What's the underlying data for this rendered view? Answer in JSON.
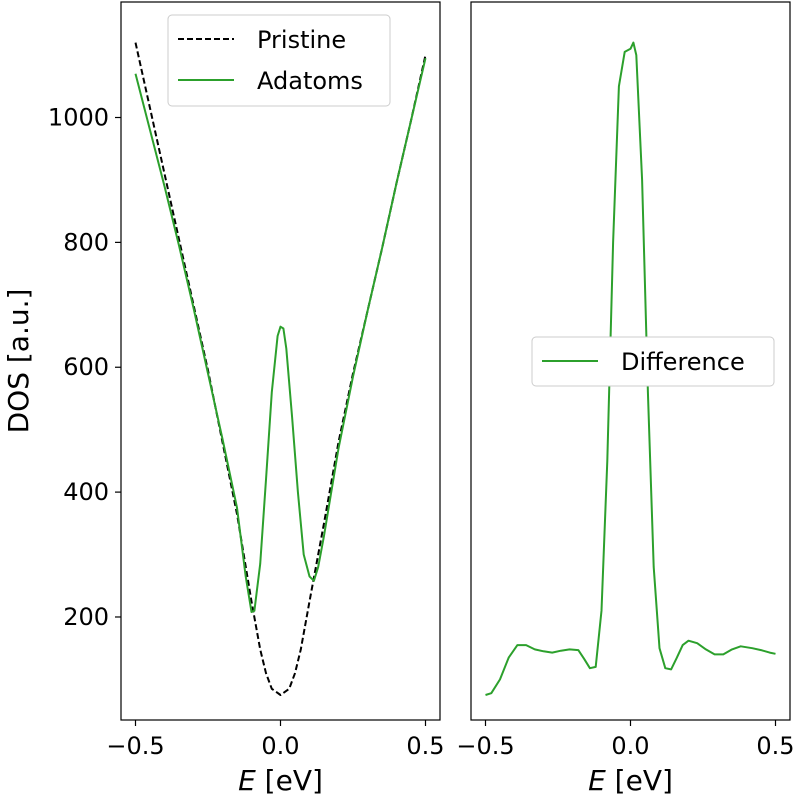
{
  "chart_data": [
    {
      "type": "line",
      "xlabel_var": "E",
      "xlabel_unit": " [eV]",
      "ylabel": "DOS [a.u.]",
      "xlim": [
        -0.55,
        0.55
      ],
      "ylim": [
        35,
        1185
      ],
      "xticks": [
        -0.5,
        0.0,
        0.5
      ],
      "xtick_labels": [
        "−0.5",
        "0.0",
        "0.5"
      ],
      "yticks": [
        200,
        400,
        600,
        800,
        1000
      ],
      "ytick_labels": [
        "200",
        "400",
        "600",
        "800",
        "1000"
      ],
      "legend_position": "top-center",
      "grid": false,
      "series": [
        {
          "name": "Pristine",
          "color": "#000000",
          "style": "dashed",
          "x": [
            -0.5,
            -0.45,
            -0.4,
            -0.35,
            -0.3,
            -0.25,
            -0.2,
            -0.15,
            -0.1,
            -0.07,
            -0.05,
            -0.03,
            0.0,
            0.03,
            0.05,
            0.07,
            0.1,
            0.15,
            0.2,
            0.25,
            0.3,
            0.35,
            0.4,
            0.45,
            0.5
          ],
          "y": [
            1120,
            1015,
            910,
            805,
            700,
            595,
            480,
            365,
            225,
            148,
            110,
            85,
            75,
            85,
            110,
            148,
            225,
            350,
            480,
            590,
            690,
            790,
            895,
            995,
            1100
          ]
        },
        {
          "name": "Adatoms",
          "color": "#2ca02c",
          "style": "solid",
          "x": [
            -0.5,
            -0.45,
            -0.4,
            -0.35,
            -0.3,
            -0.25,
            -0.2,
            -0.15,
            -0.12,
            -0.1,
            -0.09,
            -0.07,
            -0.05,
            -0.03,
            -0.01,
            0.0,
            0.01,
            0.02,
            0.04,
            0.06,
            0.08,
            0.1,
            0.115,
            0.13,
            0.15,
            0.2,
            0.25,
            0.3,
            0.35,
            0.4,
            0.45,
            0.5
          ],
          "y": [
            1070,
            980,
            890,
            795,
            695,
            590,
            485,
            375,
            265,
            208,
            210,
            285,
            420,
            560,
            650,
            665,
            662,
            630,
            520,
            400,
            300,
            265,
            258,
            280,
            330,
            470,
            585,
            690,
            790,
            895,
            995,
            1095
          ]
        }
      ]
    },
    {
      "type": "line",
      "xlabel_var": "E",
      "xlabel_unit": " [eV]",
      "ylabel": "",
      "xlim": [
        -0.55,
        0.55
      ],
      "ylim": [
        35,
        1185
      ],
      "xticks": [
        -0.5,
        0.0,
        0.5
      ],
      "xtick_labels": [
        "−0.5",
        "0.0",
        "0.5"
      ],
      "yticks": [],
      "ytick_labels": [],
      "legend_position": "center-right",
      "grid": false,
      "series": [
        {
          "name": "Difference",
          "color": "#2ca02c",
          "style": "solid",
          "x": [
            -0.5,
            -0.48,
            -0.45,
            -0.42,
            -0.39,
            -0.36,
            -0.33,
            -0.3,
            -0.27,
            -0.24,
            -0.21,
            -0.18,
            -0.16,
            -0.14,
            -0.12,
            -0.1,
            -0.08,
            -0.06,
            -0.04,
            -0.02,
            0.0,
            0.01,
            0.02,
            0.04,
            0.06,
            0.08,
            0.1,
            0.12,
            0.14,
            0.16,
            0.18,
            0.2,
            0.23,
            0.26,
            0.29,
            0.32,
            0.35,
            0.38,
            0.42,
            0.45,
            0.48,
            0.5
          ],
          "y": [
            75,
            78,
            100,
            135,
            155,
            155,
            148,
            145,
            143,
            146,
            148,
            147,
            133,
            118,
            120,
            210,
            450,
            800,
            1050,
            1105,
            1110,
            1120,
            1100,
            900,
            560,
            280,
            150,
            118,
            116,
            135,
            155,
            162,
            158,
            148,
            140,
            140,
            148,
            153,
            150,
            147,
            143,
            141
          ]
        }
      ]
    }
  ]
}
